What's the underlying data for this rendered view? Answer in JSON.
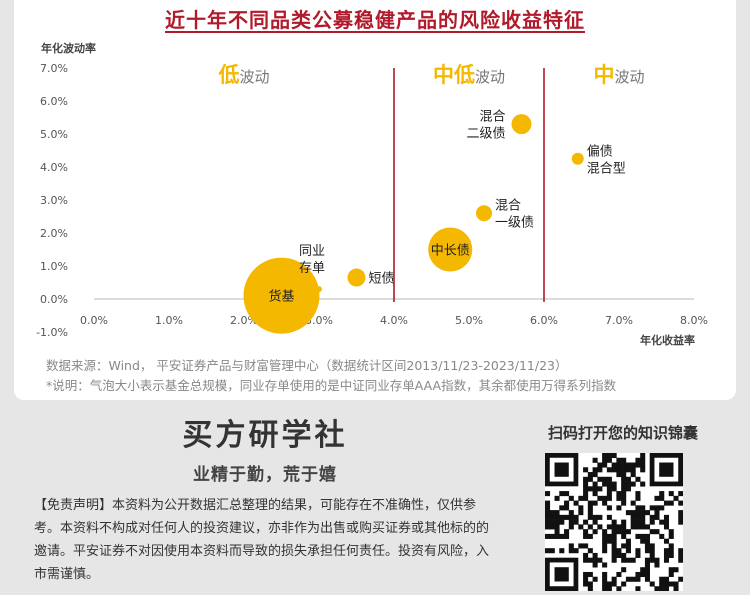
{
  "title": "近十年不同品类公募稳健产品的风险收益特征",
  "chart_data": {
    "type": "scatter",
    "ylabel": "年化波动率",
    "xlabel": "年化收益率",
    "xlim": [
      0.0,
      8.0
    ],
    "ylim": [
      -1.0,
      7.0
    ],
    "x_ticks": [
      "0.0%",
      "1.0%",
      "2.0%",
      "3.0%",
      "4.0%",
      "5.0%",
      "6.0%",
      "7.0%",
      "8.0%"
    ],
    "y_ticks": [
      "-1.0%",
      "0.0%",
      "1.0%",
      "2.0%",
      "3.0%",
      "4.0%",
      "5.0%",
      "6.0%",
      "7.0%"
    ],
    "vlines": [
      4.0,
      6.0
    ],
    "regions": [
      {
        "accent": "低",
        "rest": "波动",
        "x_center": 2.0
      },
      {
        "accent": "中低",
        "rest": "波动",
        "x_center": 5.0
      },
      {
        "accent": "中",
        "rest": "波动",
        "x_center": 7.0
      }
    ],
    "points": [
      {
        "name_lines": [
          "货基"
        ],
        "x": 2.5,
        "y": 0.1,
        "size": 38,
        "label_pos": "center"
      },
      {
        "name_lines": [
          "同业",
          "存单"
        ],
        "x": 3.0,
        "y": 0.3,
        "size": 3,
        "label_pos": "above-left"
      },
      {
        "name_lines": [
          "短债"
        ],
        "x": 3.5,
        "y": 0.65,
        "size": 9,
        "label_pos": "right"
      },
      {
        "name_lines": [
          "中长债"
        ],
        "x": 4.75,
        "y": 1.5,
        "size": 22,
        "label_pos": "center"
      },
      {
        "name_lines": [
          "混合",
          "一级债"
        ],
        "x": 5.2,
        "y": 2.6,
        "size": 8,
        "label_pos": "right"
      },
      {
        "name_lines": [
          "混合",
          "二级债"
        ],
        "x": 5.7,
        "y": 5.3,
        "size": 10,
        "label_pos": "left"
      },
      {
        "name_lines": [
          "偏债",
          "混合型"
        ],
        "x": 6.45,
        "y": 4.25,
        "size": 6,
        "label_pos": "right"
      }
    ],
    "colors": {
      "bubble": "#f5b800",
      "accent": "#f5b800",
      "region_text": "#777777",
      "divider": "#b01a2a"
    }
  },
  "source_line": "数据来源：Wind， 平安证券产品与财富管理中心（数据统计区间2013/11/23-2023/11/23）",
  "note_line": "*说明：气泡大小表示基金总规模，同业存单使用的是中证同业存单AAA指数，其余都使用万得系列指数",
  "brand": "买方研学社",
  "slogan": "业精于勤，荒于嬉",
  "disclaimer": "【免责声明】本资料为公开数据汇总整理的结果，可能存在不准确性，仅供参考。本资料不构成对任何人的投资建议，亦非作为出售或购买证券或其他标的的邀请。平安证券不对因使用本资料而导致的损失承担任何责任。投资有风险，入市需谨慎。",
  "qr_caption": "扫码打开您的知识锦囊"
}
